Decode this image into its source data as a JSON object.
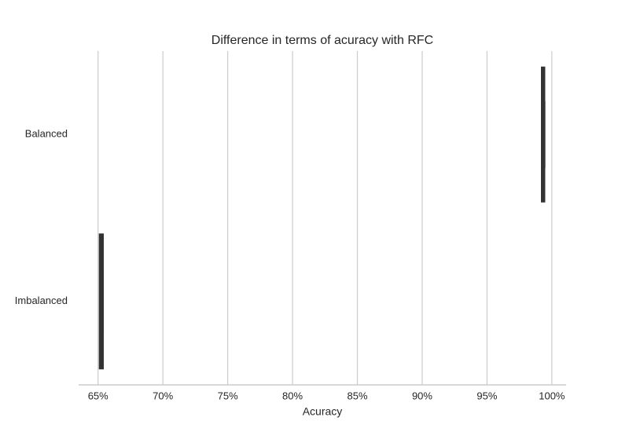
{
  "chart_data": {
    "type": "box",
    "title": "Difference in terms of acuracy with RFC",
    "xlabel": "Acuracy",
    "categories": [
      "Balanced",
      "Imbalanced"
    ],
    "boxes": [
      {
        "min": 99.2,
        "q1": 99.25,
        "median": 99.35,
        "q3": 99.4,
        "max": 99.45
      },
      {
        "min": 65.1,
        "q1": 65.15,
        "median": 65.25,
        "q3": 65.35,
        "max": 65.4
      }
    ],
    "color": "#333333",
    "xlim": [
      63.5,
      101.1
    ],
    "xticks": [
      {
        "value": 65,
        "label": "65%"
      },
      {
        "value": 70,
        "label": "70%"
      },
      {
        "value": 75,
        "label": "75%"
      },
      {
        "value": 80,
        "label": "80%"
      },
      {
        "value": 85,
        "label": "85%"
      },
      {
        "value": 90,
        "label": "90%"
      },
      {
        "value": 95,
        "label": "95%"
      },
      {
        "value": 100,
        "label": "100%"
      }
    ],
    "grid": true
  }
}
